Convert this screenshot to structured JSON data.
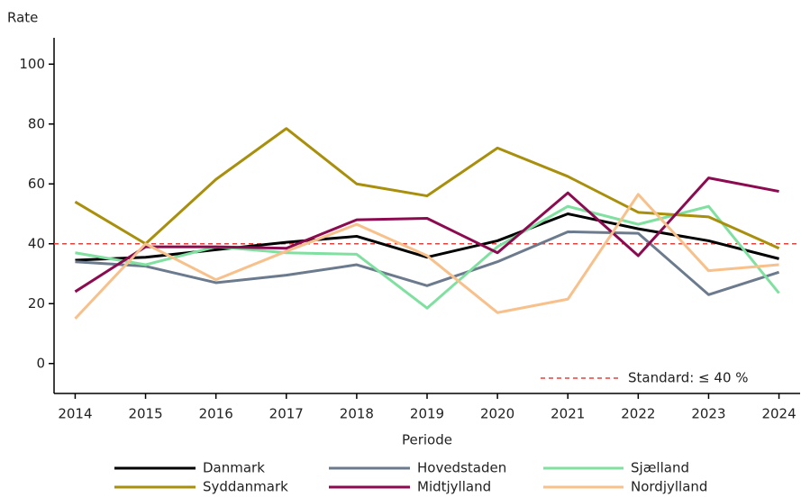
{
  "chart_data": {
    "type": "line",
    "y_label": "Rate",
    "x_label": "Periode",
    "x": [
      2014,
      2015,
      2016,
      2017,
      2018,
      2019,
      2020,
      2021,
      2022,
      2023,
      2024
    ],
    "xlim": [
      2013.7,
      2024.3
    ],
    "xticks": [
      2014,
      2015,
      2016,
      2017,
      2018,
      2019,
      2020,
      2021,
      2022,
      2023,
      2024
    ],
    "ylim": [
      -10,
      110
    ],
    "yticks": [
      0,
      20,
      40,
      60,
      80,
      100
    ],
    "reference": {
      "value": 40,
      "label": "Standard: ≤ 40 %",
      "color": "#e8413c"
    },
    "series": [
      {
        "name": "Danmark",
        "color": "#000000",
        "values": [
          34.5,
          35.5,
          38,
          40.5,
          42.5,
          35.5,
          41,
          50,
          45,
          41,
          35
        ]
      },
      {
        "name": "Hovedstaden",
        "color": "#6b7b8d",
        "values": [
          34,
          32.5,
          27,
          29.5,
          33,
          26,
          34,
          44,
          43.5,
          23,
          30.5
        ]
      },
      {
        "name": "Sjælland",
        "color": "#7fe0a0",
        "values": [
          37,
          33,
          39,
          37,
          36.5,
          18.5,
          39,
          52.5,
          46.5,
          52.5,
          23.5
        ]
      },
      {
        "name": "Syddanmark",
        "color": "#a88f0c",
        "values": [
          54,
          40,
          61.5,
          78.5,
          60,
          56,
          72,
          62.5,
          50.5,
          49,
          38.5
        ]
      },
      {
        "name": "Midtjylland",
        "color": "#8c0a50",
        "values": [
          24,
          39,
          39,
          38.5,
          48,
          48.5,
          37,
          57,
          36,
          62,
          57.5
        ]
      },
      {
        "name": "Nordjylland",
        "color": "#f8c08a",
        "values": [
          15,
          40,
          28,
          37.5,
          46.5,
          36,
          17,
          21.5,
          56.5,
          31,
          33
        ]
      }
    ]
  }
}
